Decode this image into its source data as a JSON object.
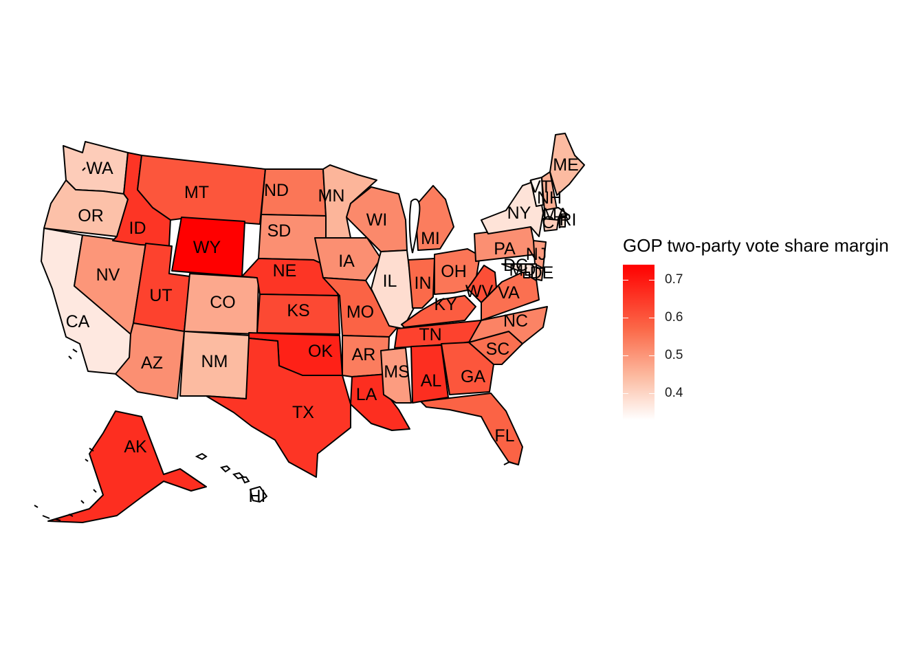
{
  "map": {
    "legend": {
      "title": "GOP two-party vote share margin",
      "ticks": [
        "0.4",
        "0.5",
        "0.6",
        "0.7"
      ],
      "low_color": "#ffffff",
      "high_color": "#ff0000"
    },
    "states": [
      {
        "abbr": "WA",
        "share": 0.42
      },
      {
        "abbr": "OR",
        "share": 0.44
      },
      {
        "abbr": "CA",
        "share": 0.37
      },
      {
        "abbr": "NV",
        "share": 0.51
      },
      {
        "abbr": "ID",
        "share": 0.66
      },
      {
        "abbr": "MT",
        "share": 0.61
      },
      {
        "abbr": "WY",
        "share": 0.74
      },
      {
        "abbr": "UT",
        "share": 0.64
      },
      {
        "abbr": "AZ",
        "share": 0.52
      },
      {
        "abbr": "CO",
        "share": 0.48
      },
      {
        "abbr": "NM",
        "share": 0.45
      },
      {
        "abbr": "ND",
        "share": 0.56
      },
      {
        "abbr": "SD",
        "share": 0.52
      },
      {
        "abbr": "NE",
        "share": 0.66
      },
      {
        "abbr": "KS",
        "share": 0.63
      },
      {
        "abbr": "OK",
        "share": 0.69
      },
      {
        "abbr": "TX",
        "share": 0.66
      },
      {
        "abbr": "MN",
        "share": 0.46
      },
      {
        "abbr": "IA",
        "share": 0.52
      },
      {
        "abbr": "MO",
        "share": 0.59
      },
      {
        "abbr": "AR",
        "share": 0.55
      },
      {
        "abbr": "LA",
        "share": 0.67
      },
      {
        "abbr": "WI",
        "share": 0.53
      },
      {
        "abbr": "IL",
        "share": 0.39
      },
      {
        "abbr": "MI",
        "share": 0.55
      },
      {
        "abbr": "IN",
        "share": 0.58
      },
      {
        "abbr": "OH",
        "share": 0.56
      },
      {
        "abbr": "KY",
        "share": 0.6
      },
      {
        "abbr": "TN",
        "share": 0.64
      },
      {
        "abbr": "MS",
        "share": 0.5
      },
      {
        "abbr": "AL",
        "share": 0.67
      },
      {
        "abbr": "GA",
        "share": 0.61
      },
      {
        "abbr": "FL",
        "share": 0.59
      },
      {
        "abbr": "SC",
        "share": 0.57
      },
      {
        "abbr": "NC",
        "share": 0.54
      },
      {
        "abbr": "VA",
        "share": 0.57
      },
      {
        "abbr": "WV",
        "share": 0.62
      },
      {
        "abbr": "PA",
        "share": 0.52
      },
      {
        "abbr": "NY",
        "share": 0.38
      },
      {
        "abbr": "VT",
        "share": 0.35
      },
      {
        "abbr": "NH",
        "share": 0.47
      },
      {
        "abbr": "ME",
        "share": 0.45
      },
      {
        "abbr": "MA",
        "share": 0.36
      },
      {
        "abbr": "RI",
        "share": 0.39
      },
      {
        "abbr": "CT",
        "share": 0.42
      },
      {
        "abbr": "NJ",
        "share": 0.5
      },
      {
        "abbr": "DE",
        "share": 0.45
      },
      {
        "abbr": "MD",
        "share": 0.38
      },
      {
        "abbr": "DC",
        "share": 0.34
      },
      {
        "abbr": "AK",
        "share": 0.67
      },
      {
        "abbr": "HI",
        "share": 0.33
      }
    ]
  }
}
